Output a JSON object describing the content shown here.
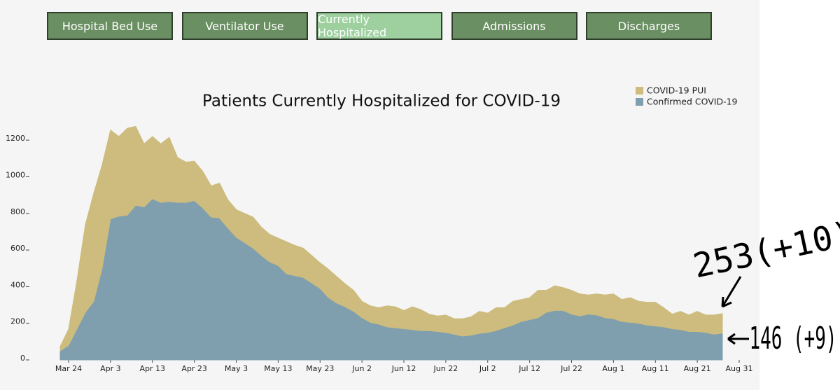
{
  "nav": {
    "buttons": [
      "Hospital Bed Use",
      "Ventilator Use",
      "Currently Hospitalized",
      "Admissions",
      "Discharges"
    ],
    "active": 2
  },
  "chart_data": {
    "type": "area",
    "stacked": true,
    "title": "Patients Currently Hospitalized for COVID-19",
    "x": [
      "Mar 22",
      "Mar 24",
      "Mar 26",
      "Mar 28",
      "Mar 30",
      "Apr 1",
      "Apr 3",
      "Apr 5",
      "Apr 7",
      "Apr 9",
      "Apr 11",
      "Apr 13",
      "Apr 15",
      "Apr 17",
      "Apr 19",
      "Apr 21",
      "Apr 23",
      "Apr 25",
      "Apr 27",
      "Apr 29",
      "May 1",
      "May 3",
      "May 5",
      "May 7",
      "May 9",
      "May 11",
      "May 13",
      "May 15",
      "May 17",
      "May 19",
      "May 21",
      "May 23",
      "May 25",
      "May 27",
      "May 29",
      "May 31",
      "Jun 2",
      "Jun 4",
      "Jun 6",
      "Jun 8",
      "Jun 10",
      "Jun 12",
      "Jun 14",
      "Jun 16",
      "Jun 18",
      "Jun 20",
      "Jun 22",
      "Jun 24",
      "Jun 26",
      "Jun 28",
      "Jun 30",
      "Jul 2",
      "Jul 4",
      "Jul 6",
      "Jul 8",
      "Jul 10",
      "Jul 12",
      "Jul 14",
      "Jul 16",
      "Jul 18",
      "Jul 20",
      "Jul 22",
      "Jul 24",
      "Jul 26",
      "Jul 28",
      "Jul 30",
      "Aug 1",
      "Aug 3",
      "Aug 5",
      "Aug 7",
      "Aug 9",
      "Aug 11",
      "Aug 13",
      "Aug 15",
      "Aug 17",
      "Aug 19",
      "Aug 21",
      "Aug 23",
      "Aug 25",
      "Aug 27"
    ],
    "series": [
      {
        "name": "COVID-19 PUI",
        "color": "#cdbc7d",
        "values": [
          23,
          88,
          265,
          480,
          590,
          565,
          485,
          435,
          475,
          430,
          345,
          340,
          320,
          350,
          245,
          220,
          215,
          200,
          170,
          190,
          155,
          150,
          160,
          170,
          155,
          150,
          150,
          175,
          165,
          160,
          150,
          140,
          155,
          145,
          125,
          115,
          90,
          90,
          90,
          115,
          115,
          100,
          125,
          115,
          90,
          85,
          95,
          85,
          95,
          100,
          120,
          105,
          125,
          110,
          130,
          120,
          120,
          150,
          120,
          135,
          125,
          130,
          120,
          105,
          115,
          125,
          135,
          120,
          135,
          120,
          125,
          130,
          105,
          80,
          100,
          90,
          110,
          95,
          105,
          107
        ]
      },
      {
        "name": "Confirmed COVID-19",
        "color": "#7f9fae",
        "values": [
          50,
          80,
          170,
          260,
          320,
          500,
          770,
          785,
          790,
          845,
          835,
          880,
          860,
          865,
          860,
          860,
          870,
          830,
          780,
          775,
          720,
          670,
          640,
          610,
          570,
          535,
          515,
          470,
          460,
          450,
          420,
          390,
          340,
          310,
          290,
          265,
          230,
          205,
          195,
          180,
          175,
          170,
          165,
          160,
          160,
          155,
          150,
          140,
          130,
          135,
          145,
          150,
          160,
          175,
          190,
          210,
          220,
          230,
          260,
          270,
          270,
          250,
          240,
          250,
          245,
          230,
          225,
          210,
          205,
          200,
          190,
          185,
          180,
          170,
          165,
          155,
          155,
          150,
          140,
          146
        ]
      }
    ],
    "xticks": [
      "Mar 24",
      "Apr 3",
      "Apr 13",
      "Apr 23",
      "May 3",
      "May 13",
      "May 23",
      "Jun 2",
      "Jun 12",
      "Jun 22",
      "Jul 2",
      "Jul 12",
      "Jul 22",
      "Aug 1",
      "Aug 11",
      "Aug 21",
      "Aug 31"
    ],
    "ylim": [
      0,
      1300
    ],
    "yticks": [
      0,
      200,
      400,
      600,
      800,
      1000,
      1200
    ],
    "legend": "top-right",
    "annotations": [
      "253(+10)",
      "146 (+9)"
    ]
  }
}
